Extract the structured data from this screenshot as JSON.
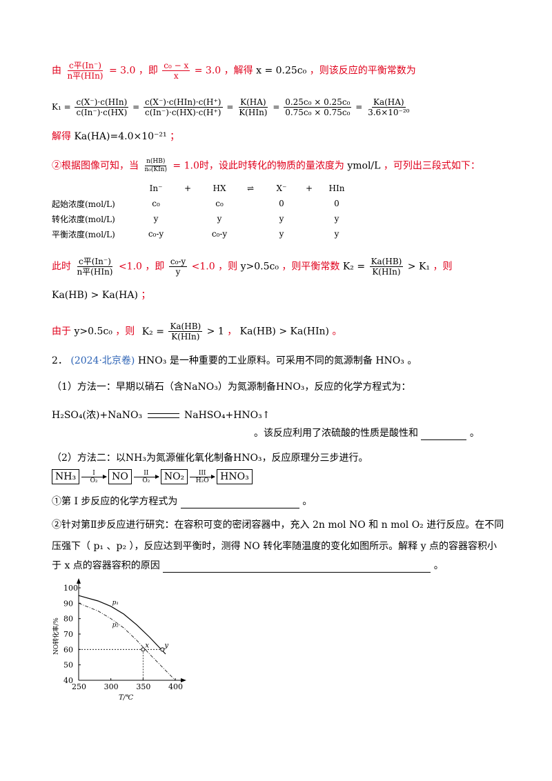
{
  "l1": {
    "p1": "由",
    "f1_num": "c平(In⁻)",
    "f1_den": "n平(HIn)",
    "p2": "= 3.0 ，即",
    "f2_num": "c₀ − x",
    "f2_den": "x",
    "p3": "= 3.0 ，解得",
    "p4": "x = 0.25c₀",
    "p5": "，则该反应的平衡常数为"
  },
  "l2": {
    "k": "K₁ =",
    "f1_num": "c(X⁻)·c(HIn)",
    "f1_den": "c(In⁻)·c(HX)",
    "f2_num": "c(X⁻)·c(HIn)·c(H⁺)",
    "f2_den": "c(In⁻)·c(HX)·c(H⁺)",
    "f3_num": "K(HA)",
    "f3_den": "K(HIn)",
    "f4_num": "0.25c₀ × 0.25c₀",
    "f4_den": "0.75c₀ × 0.75c₀",
    "f5_num": "Ka(HA)",
    "f5_den": "3.6×10⁻²⁰",
    "eq": "="
  },
  "l3": {
    "p1": "解得",
    "p2": "Ka(HA)=4.0×10⁻²¹",
    "p3": "；"
  },
  "l4": {
    "p1": "②根据图像可知，当",
    "f_num": "n(HB)",
    "f_den": "n₀(KIn)",
    "p2": "= 1.0时，设此时转化的物质的量浓度为",
    "p3": "ymol/L",
    "p4": "，可列出三段式如下："
  },
  "ice": {
    "header": [
      "",
      "In⁻",
      "+",
      "HX",
      "⇌",
      "X⁻",
      "+",
      "HIn"
    ],
    "rows": [
      [
        "起始浓度(mol/L)",
        "c₀",
        "",
        "c₀",
        "",
        "0",
        "",
        "0"
      ],
      [
        "转化浓度(mol/L)",
        "y",
        "",
        "y",
        "",
        "y",
        "",
        "y"
      ],
      [
        "平衡浓度(mol/L)",
        "c₀-y",
        "",
        "c₀-y",
        "",
        "y",
        "",
        "y"
      ]
    ]
  },
  "l5": {
    "p1": "此时",
    "f1_num": "c平(In⁻)",
    "f1_den": "n平(HIn)",
    "p2": "<1.0 ，即",
    "f2_num": "c₀-y",
    "f2_den": "y",
    "p3": "<1.0 ，则",
    "p4": "y>0.5c₀",
    "p5": "，则平衡常数",
    "p6": "K₂ =",
    "f3_num": "Ka(HB)",
    "f3_den": "K(HIn)",
    "p7": "> K₁",
    "p8": "，则"
  },
  "l6": {
    "p1": "Ka(HB) > Ka(HA)",
    "p2": "；"
  },
  "l7": {
    "p1": "由于",
    "p2": "y>0.5c₀",
    "p3": "，则",
    "k": "K₂ =",
    "f_num": "Ka(HB)",
    "f_den": "K(HIn)",
    "p4": "> 1",
    "p5": "，",
    "p6": "Ka(HB) > Ka(HIn)",
    "p7": "。"
  },
  "q2": {
    "num": "2．",
    "src": "(2024·北京卷)",
    "p1": "HNO₃",
    "p2": "是一种重要的工业原料。可采用不同的氮源制备",
    "p3": "HNO₃",
    "p4": "。"
  },
  "m1": {
    "p1": "（1）方法一：早期以硝石（含",
    "p2": "NaNO₃",
    "p3": "）为氮源制备",
    "p4": "HNO₃",
    "p5": "，反应的化学方程式为："
  },
  "eq1": {
    "lhs": "H₂SO₄(浓)+NaNO₃",
    "rhs": "NaHSO₄+HNO₃↑"
  },
  "eq1b": {
    "p1": "。该反应利用了浓硫酸的性质是酸性和",
    "p2": "。"
  },
  "m2": {
    "p1": "（2）方法二：以",
    "p2": "NH₃",
    "p3": "为氮源催化氧化制备",
    "p4": "HNO₃",
    "p5": "，反应原理分三步进行。"
  },
  "flow": {
    "s1": "NH₃",
    "a1_top": "I",
    "a1_bot": "O₂",
    "s2": "NO",
    "a2_top": "II",
    "a2_bot": "O₂",
    "s3": "NO₂",
    "a3_top": "III",
    "a3_bot": "H₂O",
    "s4": "HNO₃"
  },
  "s1q": {
    "p1": "①第 I 步反应的化学方程式为",
    "p2": "。"
  },
  "s2q": {
    "p1": "②针对第Ⅱ步反应进行研究：在容积可变的密闭容器中，充入",
    "p2": "2n mol NO",
    "p3": "和",
    "p4": "n mol O₂",
    "p5": "进行反应。在不同",
    "p6": "压强下（",
    "p7": "p₁ 、p₂",
    "p8": "），反应达到平衡时，测得",
    "p9": "NO",
    "p10": "转化率随温度的变化如图所示。解释 y 点的容器容积小",
    "p11": "于 x 点的容器容积的原因",
    "p12": "。"
  },
  "chart_data": {
    "type": "line",
    "xlabel": "T/℃",
    "ylabel": "NO转化率/%",
    "xlim": [
      250,
      400
    ],
    "ylim": [
      40,
      100
    ],
    "xticks": [
      "250",
      "300",
      "350",
      "400"
    ],
    "yticks": [
      "40",
      "50",
      "60",
      "70",
      "80",
      "90",
      "100"
    ],
    "series": [
      {
        "name": "p₁",
        "style": "solid",
        "x": [
          250,
          280,
          300,
          320,
          340,
          360,
          385
        ],
        "y": [
          95,
          91.5,
          88,
          83,
          76,
          68,
          57
        ]
      },
      {
        "name": "p₂",
        "style": "dashed",
        "x": [
          250,
          280,
          300,
          320,
          340,
          360,
          400
        ],
        "y": [
          90,
          85,
          80,
          74,
          66,
          57,
          40
        ]
      }
    ],
    "points": [
      {
        "label": "x",
        "x": 350,
        "y": 60
      },
      {
        "label": "y",
        "x": 380,
        "y": 60
      }
    ]
  }
}
